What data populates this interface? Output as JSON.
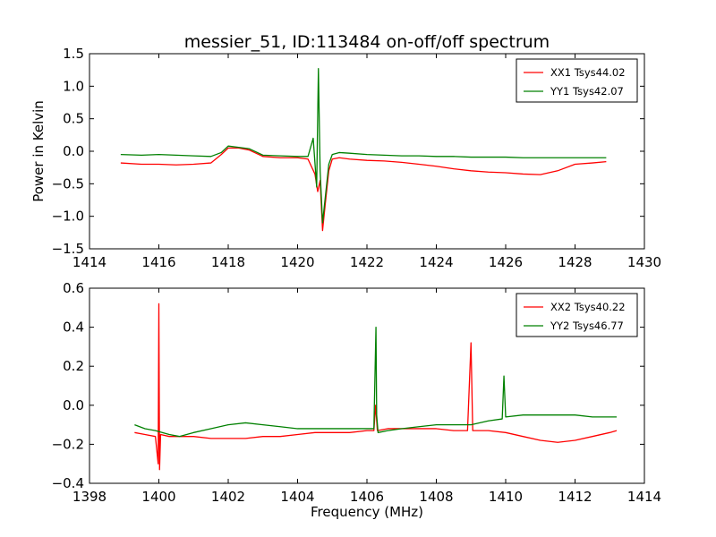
{
  "figure": {
    "title": "messier_51, ID:113484 on-off/off spectrum",
    "xlabel": "Frequency (MHz)"
  },
  "chart_data": [
    {
      "type": "line",
      "title": "messier_51, ID:113484 on-off/off spectrum",
      "xlabel": "",
      "ylabel": "Power in Kelvin",
      "xlim": [
        1414,
        1430
      ],
      "ylim": [
        -1.5,
        1.5
      ],
      "xticks": [
        1414,
        1416,
        1418,
        1420,
        1422,
        1424,
        1426,
        1428,
        1430
      ],
      "yticks": [
        -1.5,
        -1.0,
        -0.5,
        0.0,
        0.5,
        1.0,
        1.5
      ],
      "ytick_labels": [
        "−1.5",
        "−1.0",
        "−0.5",
        "0.0",
        "0.5",
        "1.0",
        "1.5"
      ],
      "legend": "top-right",
      "grid": false,
      "series": [
        {
          "name": "XX1 Tsys44.02",
          "color": "#ff0000",
          "x": [
            1414.9,
            1415.5,
            1416.0,
            1416.5,
            1417.0,
            1417.5,
            1417.8,
            1418.0,
            1418.3,
            1418.6,
            1419.0,
            1419.5,
            1420.0,
            1420.3,
            1420.5,
            1420.58,
            1420.65,
            1420.72,
            1420.8,
            1420.9,
            1421.0,
            1421.2,
            1421.5,
            1422.0,
            1422.5,
            1423.0,
            1423.5,
            1424.0,
            1424.5,
            1425.0,
            1425.5,
            1426.0,
            1426.5,
            1427.0,
            1427.5,
            1428.0,
            1428.5,
            1428.9
          ],
          "y": [
            -0.18,
            -0.2,
            -0.2,
            -0.21,
            -0.2,
            -0.18,
            -0.05,
            0.05,
            0.05,
            0.02,
            -0.08,
            -0.1,
            -0.1,
            -0.12,
            -0.35,
            -0.62,
            -0.45,
            -1.22,
            -0.8,
            -0.3,
            -0.12,
            -0.1,
            -0.12,
            -0.14,
            -0.15,
            -0.17,
            -0.2,
            -0.23,
            -0.27,
            -0.3,
            -0.32,
            -0.33,
            -0.35,
            -0.36,
            -0.3,
            -0.2,
            -0.18,
            -0.16
          ]
        },
        {
          "name": "YY1 Tsys42.07",
          "color": "#008000",
          "x": [
            1414.9,
            1415.5,
            1416.0,
            1416.5,
            1417.0,
            1417.5,
            1417.8,
            1418.0,
            1418.3,
            1418.6,
            1419.0,
            1419.5,
            1420.0,
            1420.3,
            1420.45,
            1420.55,
            1420.6,
            1420.65,
            1420.72,
            1420.8,
            1420.9,
            1421.0,
            1421.2,
            1421.5,
            1422.0,
            1422.5,
            1423.0,
            1423.5,
            1424.0,
            1424.5,
            1425.0,
            1425.5,
            1426.0,
            1426.5,
            1427.0,
            1427.5,
            1428.0,
            1428.5,
            1428.9
          ],
          "y": [
            -0.05,
            -0.06,
            -0.05,
            -0.06,
            -0.07,
            -0.08,
            -0.02,
            0.08,
            0.06,
            0.04,
            -0.06,
            -0.07,
            -0.08,
            -0.08,
            0.2,
            -0.55,
            1.27,
            -0.3,
            -1.1,
            -0.7,
            -0.2,
            -0.05,
            -0.02,
            -0.03,
            -0.05,
            -0.06,
            -0.07,
            -0.07,
            -0.08,
            -0.08,
            -0.09,
            -0.09,
            -0.09,
            -0.1,
            -0.1,
            -0.1,
            -0.1,
            -0.1,
            -0.1
          ]
        }
      ]
    },
    {
      "type": "line",
      "title": "",
      "xlabel": "Frequency (MHz)",
      "ylabel": "",
      "xlim": [
        1398,
        1414
      ],
      "ylim": [
        -0.4,
        0.6
      ],
      "xticks": [
        1398,
        1400,
        1402,
        1404,
        1406,
        1408,
        1410,
        1412,
        1414
      ],
      "yticks": [
        -0.4,
        -0.2,
        0.0,
        0.2,
        0.4,
        0.6
      ],
      "ytick_labels": [
        "−0.4",
        "−0.2",
        "0.0",
        "0.2",
        "0.4",
        "0.6"
      ],
      "legend": "top-right",
      "grid": false,
      "series": [
        {
          "name": "XX2 Tsys40.22",
          "color": "#ff0000",
          "x": [
            1399.3,
            1399.6,
            1399.9,
            1399.98,
            1400.0,
            1400.02,
            1400.05,
            1400.3,
            1400.6,
            1401.0,
            1401.5,
            1402.0,
            1402.5,
            1403.0,
            1403.5,
            1404.0,
            1404.5,
            1405.0,
            1405.5,
            1406.0,
            1406.2,
            1406.25,
            1406.3,
            1406.6,
            1407.0,
            1407.5,
            1408.0,
            1408.5,
            1408.9,
            1409.0,
            1409.05,
            1409.2,
            1409.5,
            1410.0,
            1410.5,
            1411.0,
            1411.5,
            1412.0,
            1412.5,
            1413.0,
            1413.2
          ],
          "y": [
            -0.14,
            -0.15,
            -0.16,
            -0.3,
            0.52,
            -0.33,
            -0.15,
            -0.16,
            -0.16,
            -0.16,
            -0.17,
            -0.17,
            -0.17,
            -0.16,
            -0.16,
            -0.15,
            -0.14,
            -0.14,
            -0.14,
            -0.13,
            -0.13,
            0.0,
            -0.13,
            -0.12,
            -0.12,
            -0.12,
            -0.12,
            -0.13,
            -0.13,
            0.32,
            -0.13,
            -0.13,
            -0.13,
            -0.14,
            -0.16,
            -0.18,
            -0.19,
            -0.18,
            -0.16,
            -0.14,
            -0.13
          ]
        },
        {
          "name": "YY2 Tsys46.77",
          "color": "#008000",
          "x": [
            1399.3,
            1399.6,
            1399.9,
            1400.3,
            1400.6,
            1401.0,
            1401.5,
            1402.0,
            1402.5,
            1403.0,
            1403.5,
            1404.0,
            1404.5,
            1405.0,
            1405.5,
            1406.0,
            1406.2,
            1406.26,
            1406.28,
            1406.32,
            1406.6,
            1407.0,
            1407.5,
            1408.0,
            1408.5,
            1409.0,
            1409.5,
            1409.9,
            1409.95,
            1410.0,
            1410.5,
            1411.0,
            1411.5,
            1412.0,
            1412.5,
            1413.0,
            1413.2
          ],
          "y": [
            -0.1,
            -0.12,
            -0.13,
            -0.15,
            -0.16,
            -0.14,
            -0.12,
            -0.1,
            -0.09,
            -0.1,
            -0.11,
            -0.12,
            -0.12,
            -0.12,
            -0.12,
            -0.12,
            -0.12,
            0.4,
            -0.05,
            -0.14,
            -0.13,
            -0.12,
            -0.11,
            -0.1,
            -0.1,
            -0.1,
            -0.08,
            -0.07,
            0.15,
            -0.06,
            -0.05,
            -0.05,
            -0.05,
            -0.05,
            -0.06,
            -0.06,
            -0.06
          ]
        }
      ]
    }
  ]
}
